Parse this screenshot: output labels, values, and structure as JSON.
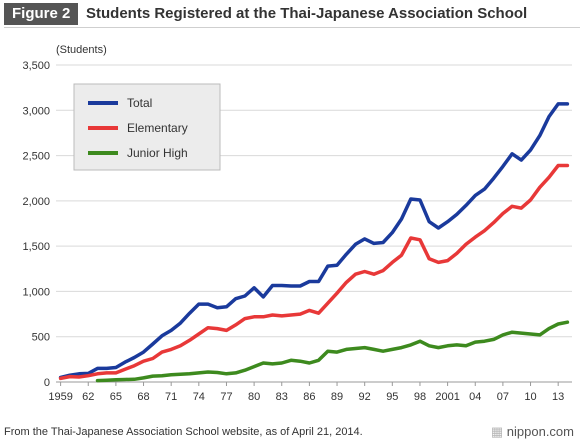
{
  "header": {
    "figure_label": "Figure 2",
    "title": "Students Registered at the Thai-Japanese Association School"
  },
  "footer": {
    "source": "From the Thai-Japanese Association School website, as of April 21, 2014.",
    "brand": "nippon.com"
  },
  "chart_data": {
    "type": "line",
    "title": "Students Registered at the Thai-Japanese Association School",
    "ylabel": "(Students)",
    "xlabel": "",
    "ylim": [
      0,
      3500
    ],
    "xlim": [
      1958.5,
      2014.5
    ],
    "yticks": [
      0,
      500,
      1000,
      1500,
      2000,
      2500,
      3000,
      3500
    ],
    "ytick_labels": [
      "0",
      "500",
      "1,000",
      "1,500",
      "2,000",
      "2,500",
      "3,000",
      "3,500"
    ],
    "xticks": [
      1959,
      1962,
      1965,
      1968,
      1971,
      1974,
      1977,
      1980,
      1983,
      1986,
      1989,
      1992,
      1995,
      1998,
      2001,
      2004,
      2007,
      2010,
      2013
    ],
    "xtick_labels": [
      "1959",
      "62",
      "65",
      "68",
      "71",
      "74",
      "77",
      "80",
      "83",
      "86",
      "89",
      "92",
      "95",
      "98",
      "2001",
      "04",
      "07",
      "10",
      "13"
    ],
    "grid": true,
    "legend_position": "top-left",
    "series": [
      {
        "name": "Total",
        "color": "#1a3a9c",
        "x": [
          1959,
          1960,
          1961,
          1962,
          1963,
          1964,
          1965,
          1966,
          1967,
          1968,
          1969,
          1970,
          1971,
          1972,
          1973,
          1974,
          1975,
          1976,
          1977,
          1978,
          1979,
          1980,
          1981,
          1982,
          1983,
          1984,
          1985,
          1986,
          1987,
          1988,
          1989,
          1990,
          1991,
          1992,
          1993,
          1994,
          1995,
          1996,
          1997,
          1998,
          1999,
          2000,
          2001,
          2002,
          2003,
          2004,
          2005,
          2006,
          2007,
          2008,
          2009,
          2010,
          2011,
          2012,
          2013,
          2014
        ],
        "values": [
          50,
          75,
          90,
          95,
          150,
          150,
          160,
          220,
          270,
          330,
          420,
          510,
          570,
          650,
          760,
          860,
          860,
          820,
          830,
          920,
          950,
          1040,
          940,
          1065,
          1065,
          1060,
          1060,
          1110,
          1110,
          1280,
          1290,
          1410,
          1520,
          1580,
          1530,
          1540,
          1650,
          1800,
          2020,
          2010,
          1770,
          1700,
          1770,
          1850,
          1950,
          2060,
          2130,
          2250,
          2380,
          2520,
          2450,
          2560,
          2720,
          2930,
          3070,
          3070
        ]
      },
      {
        "name": "Elementary",
        "color": "#e83838",
        "x": [
          1959,
          1960,
          1961,
          1962,
          1963,
          1964,
          1965,
          1966,
          1967,
          1968,
          1969,
          1970,
          1971,
          1972,
          1973,
          1974,
          1975,
          1976,
          1977,
          1978,
          1979,
          1980,
          1981,
          1982,
          1983,
          1984,
          1985,
          1986,
          1987,
          1988,
          1989,
          1990,
          1991,
          1992,
          1993,
          1994,
          1995,
          1996,
          1997,
          1998,
          1999,
          2000,
          2001,
          2002,
          2003,
          2004,
          2005,
          2006,
          2007,
          2008,
          2009,
          2010,
          2011,
          2012,
          2013,
          2014
        ],
        "values": [
          40,
          60,
          55,
          70,
          90,
          100,
          100,
          140,
          180,
          230,
          260,
          330,
          360,
          400,
          460,
          530,
          600,
          590,
          570,
          630,
          700,
          720,
          720,
          740,
          730,
          740,
          750,
          790,
          760,
          870,
          980,
          1100,
          1190,
          1220,
          1190,
          1230,
          1320,
          1400,
          1590,
          1570,
          1360,
          1320,
          1340,
          1420,
          1520,
          1600,
          1670,
          1760,
          1860,
          1940,
          1920,
          2010,
          2150,
          2260,
          2390,
          2390
        ]
      },
      {
        "name": "Junior High",
        "color": "#3d8a1e",
        "x": [
          1963,
          1964,
          1965,
          1966,
          1967,
          1968,
          1969,
          1970,
          1971,
          1972,
          1973,
          1974,
          1975,
          1976,
          1977,
          1978,
          1979,
          1980,
          1981,
          1982,
          1983,
          1984,
          1985,
          1986,
          1987,
          1988,
          1989,
          1990,
          1991,
          1992,
          1993,
          1994,
          1995,
          1996,
          1997,
          1998,
          1999,
          2000,
          2001,
          2002,
          2003,
          2004,
          2005,
          2006,
          2007,
          2008,
          2009,
          2010,
          2011,
          2012,
          2013,
          2014
        ],
        "values": [
          15,
          20,
          25,
          28,
          30,
          45,
          65,
          70,
          80,
          85,
          90,
          100,
          110,
          105,
          90,
          100,
          130,
          170,
          210,
          200,
          210,
          240,
          230,
          210,
          240,
          340,
          330,
          360,
          370,
          380,
          360,
          340,
          360,
          380,
          410,
          450,
          400,
          380,
          400,
          410,
          400,
          440,
          450,
          470,
          520,
          550,
          540,
          530,
          520,
          590,
          640,
          660
        ]
      }
    ]
  }
}
